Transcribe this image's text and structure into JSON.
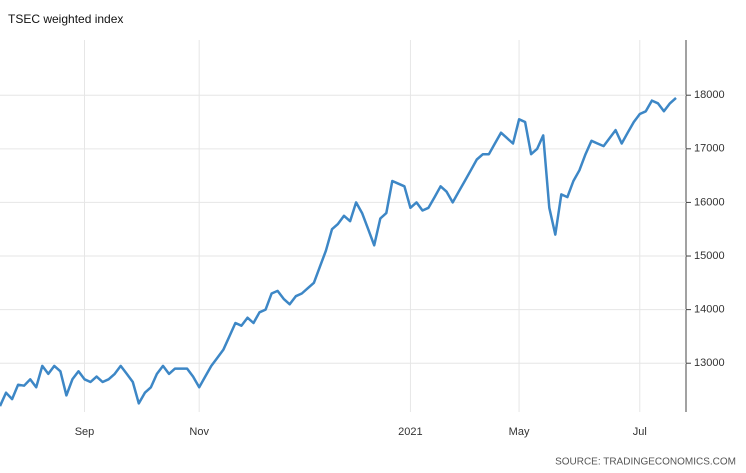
{
  "chart_data": {
    "type": "line",
    "title": "TSEC weighted index",
    "source": "SOURCE: TRADINGECONOMICS.COM",
    "categories": [
      null,
      null,
      null,
      null,
      null,
      null,
      null,
      null,
      null,
      null,
      null,
      null,
      null,
      null,
      "Sep",
      null,
      null,
      null,
      null,
      null,
      null,
      null,
      null,
      null,
      null,
      null,
      null,
      null,
      null,
      null,
      null,
      null,
      null,
      "Nov",
      null,
      null,
      null,
      null,
      null,
      null,
      null,
      null,
      null,
      null,
      null,
      null,
      null,
      null,
      null,
      null,
      null,
      null,
      null,
      null,
      null,
      null,
      null,
      null,
      null,
      null,
      null,
      null,
      null,
      null,
      null,
      null,
      null,
      null,
      "2021",
      null,
      null,
      null,
      null,
      null,
      null,
      null,
      null,
      null,
      null,
      null,
      null,
      null,
      null,
      null,
      null,
      null,
      "May",
      null,
      null,
      null,
      null,
      null,
      null,
      null,
      null,
      null,
      null,
      null,
      null,
      null,
      null,
      null,
      null,
      null,
      null,
      null,
      "Jul",
      null,
      null,
      null,
      null,
      null,
      null
    ],
    "values": [
      12200,
      12450,
      12330,
      12600,
      12580,
      12700,
      12550,
      12950,
      12800,
      12950,
      12850,
      12400,
      12700,
      12850,
      12700,
      12650,
      12750,
      12650,
      12700,
      12800,
      12950,
      12800,
      12650,
      12250,
      12450,
      12550,
      12800,
      12950,
      12800,
      12900,
      12900,
      12900,
      12750,
      12550,
      12750,
      12950,
      13100,
      13250,
      13500,
      13750,
      13700,
      13850,
      13750,
      13950,
      14000,
      14300,
      14350,
      14200,
      14100,
      14250,
      14300,
      14400,
      14500,
      14800,
      15100,
      15500,
      15600,
      15750,
      15650,
      16000,
      15800,
      15500,
      15200,
      15700,
      15800,
      16400,
      16350,
      16300,
      15900,
      16000,
      15850,
      15900,
      16100,
      16300,
      16200,
      16000,
      16200,
      16400,
      16600,
      16800,
      16900,
      16900,
      17100,
      17300,
      17200,
      17100,
      17550,
      17500,
      16900,
      17000,
      17250,
      15900,
      15400,
      16150,
      16100,
      16400,
      16600,
      16900,
      17150,
      17100,
      17050,
      17200,
      17350,
      17100,
      17300,
      17500,
      17650,
      17700,
      17900,
      17850,
      17700,
      17850,
      17950
    ],
    "color": "#3d87c6",
    "ylim": [
      12090,
      19030
    ],
    "yticks": [
      13000,
      14000,
      15000,
      16000,
      17000,
      18000
    ],
    "grid": true
  }
}
